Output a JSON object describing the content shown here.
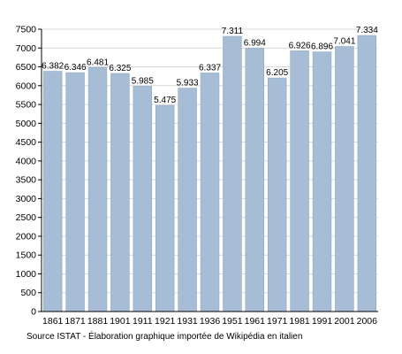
{
  "chart_data": {
    "type": "bar",
    "title": "",
    "xlabel": "",
    "ylabel": "",
    "categories": [
      "1861",
      "1871",
      "1881",
      "1901",
      "1911",
      "1921",
      "1931",
      "1936",
      "1951",
      "1961",
      "1971",
      "1981",
      "1991",
      "2001",
      "2006"
    ],
    "values": [
      6382,
      6346,
      6481,
      6325,
      5985,
      5475,
      5933,
      6337,
      7311,
      6994,
      6205,
      6926,
      6896,
      7041,
      7334
    ],
    "value_labels": [
      "6.382",
      "6.346",
      "6.481",
      "6.325",
      "5.985",
      "5.475",
      "5.933",
      "6.337",
      "7.311",
      "6.994",
      "6.205",
      "6.926",
      "6.896",
      "7.041",
      "7.334"
    ],
    "ylim": [
      0,
      7500
    ],
    "yticks": [
      0,
      500,
      1000,
      1500,
      2000,
      2500,
      3000,
      3500,
      4000,
      4500,
      5000,
      5500,
      6000,
      6500,
      7000,
      7500
    ],
    "grid": true,
    "legend": "none",
    "bar_color": "#a7bdd6",
    "bar_edge_color": "#8ea6c1",
    "grid_color": "#d9d9d9"
  },
  "source_note": "Source ISTAT - Élaboration graphique importée de Wikipédia en italien"
}
